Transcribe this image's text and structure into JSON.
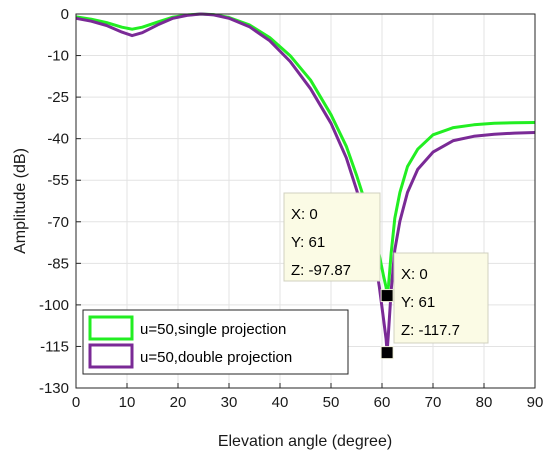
{
  "chart_data": {
    "type": "line",
    "xlabel": "Elevation angle (degree)",
    "ylabel": "Amplitude (dB)",
    "xlim": [
      0,
      90
    ],
    "ylim": [
      -130,
      0
    ],
    "xticks": [
      "0",
      "10",
      "20",
      "30",
      "40",
      "50",
      "60",
      "70",
      "80",
      "90"
    ],
    "yticks": [
      "0",
      "-10",
      "-25",
      "-40",
      "-55",
      "-70",
      "-85",
      "-100",
      "-115",
      "-130"
    ],
    "grid": true,
    "legend_position": "bottom-left",
    "series": [
      {
        "name": "u=50,single projection",
        "color": "#22ee22",
        "x": [
          0,
          3,
          6,
          9,
          11,
          13,
          16,
          19,
          22,
          24.5,
          27,
          30,
          34,
          38,
          42,
          46,
          50,
          53,
          55,
          57,
          58.5,
          59.5,
          60.3,
          60.8,
          61,
          61.3,
          61.8,
          62.5,
          63.5,
          65,
          67,
          70,
          74,
          78,
          82,
          86,
          90
        ],
        "y": [
          -1,
          -1.8,
          -3,
          -4.6,
          -5.3,
          -4.6,
          -2.8,
          -1.1,
          -0.3,
          0,
          -0.2,
          -1.2,
          -3.8,
          -8.2,
          -14.5,
          -23,
          -35,
          -46,
          -56,
          -67,
          -76,
          -84,
          -91,
          -95,
          -97.87,
          -94,
          -83,
          -71,
          -62,
          -53,
          -47,
          -42,
          -39.5,
          -38.5,
          -38,
          -37.8,
          -37.7
        ]
      },
      {
        "name": "u=50,double projection",
        "color": "#7a2a96",
        "x": [
          0,
          3,
          6,
          9,
          11,
          13,
          16,
          19,
          22,
          24.5,
          27,
          30,
          34,
          38,
          42,
          46,
          50,
          53,
          55,
          57,
          58.5,
          59.5,
          60.3,
          60.8,
          61,
          61.3,
          61.8,
          62.5,
          63.5,
          65,
          67,
          70,
          74,
          78,
          82,
          86,
          90
        ],
        "y": [
          -1.5,
          -2.5,
          -4,
          -6.3,
          -7.5,
          -6.5,
          -3.8,
          -1.5,
          -0.4,
          0,
          -0.3,
          -1.5,
          -4.4,
          -9.3,
          -16.5,
          -26,
          -38,
          -50,
          -61,
          -73,
          -84,
          -95,
          -106,
          -113,
          -117.7,
          -110,
          -96,
          -82,
          -72,
          -62,
          -54,
          -48,
          -44,
          -42.5,
          -41.8,
          -41.4,
          -41.2
        ]
      }
    ],
    "datatips": [
      {
        "x_line": "X: 0",
        "y_line": "Y: 61",
        "z_line": "Z: -97.87",
        "point_x": 61,
        "point_y": -97.87
      },
      {
        "x_line": "X: 0",
        "y_line": "Y: 61",
        "z_line": "Z: -117.7",
        "point_x": 61,
        "point_y": -117.7
      }
    ]
  }
}
